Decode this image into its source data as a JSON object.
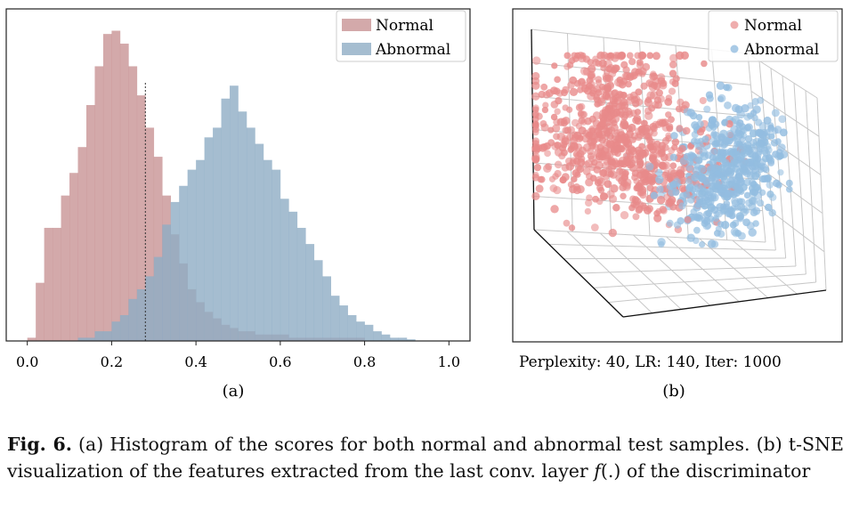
{
  "chart_data": [
    {
      "type": "histogram",
      "panel": "(a)",
      "xlim": [
        -0.05,
        1.05
      ],
      "xticks": [
        "0.0",
        "0.2",
        "0.4",
        "0.6",
        "0.8",
        "1.0"
      ],
      "xtick_values": [
        0.0,
        0.2,
        0.4,
        0.6,
        0.8,
        1.0
      ],
      "ylim": [
        0,
        1.0
      ],
      "yticks_visible": false,
      "bin_width": 0.02,
      "threshold": 0.28,
      "legend": [
        "Normal",
        "Abnormal"
      ],
      "legend_position": "top-right",
      "colors": {
        "normal": "#c48c8e",
        "abnormal": "#8facc4"
      },
      "series": [
        {
          "name": "Normal",
          "start": 0.0,
          "values": [
            0.01,
            0.18,
            0.35,
            0.35,
            0.45,
            0.52,
            0.6,
            0.73,
            0.85,
            0.95,
            0.96,
            0.92,
            0.85,
            0.76,
            0.66,
            0.57,
            0.45,
            0.33,
            0.24,
            0.16,
            0.12,
            0.09,
            0.07,
            0.05,
            0.04,
            0.03,
            0.03,
            0.02,
            0.02,
            0.02,
            0.02,
            0.01,
            0.01,
            0.01,
            0.01,
            0.01,
            0.01,
            0.01,
            0.01,
            0.01
          ]
        },
        {
          "name": "Abnormal",
          "start": 0.12,
          "values": [
            0.01,
            0.01,
            0.03,
            0.03,
            0.06,
            0.08,
            0.13,
            0.16,
            0.2,
            0.26,
            0.36,
            0.43,
            0.48,
            0.53,
            0.56,
            0.63,
            0.66,
            0.75,
            0.79,
            0.71,
            0.66,
            0.61,
            0.56,
            0.53,
            0.44,
            0.4,
            0.35,
            0.3,
            0.25,
            0.2,
            0.14,
            0.11,
            0.08,
            0.06,
            0.05,
            0.03,
            0.02,
            0.01,
            0.01,
            0.005
          ]
        }
      ]
    },
    {
      "type": "scatter3d",
      "panel": "(b)",
      "legend": [
        "Normal",
        "Abnormal"
      ],
      "legend_position": "top-right",
      "colors": {
        "normal": "#e88a8a",
        "abnormal": "#93bde0"
      },
      "subtitle": "Perplexity: 40, LR: 140, Iter: 1000",
      "clusters": [
        {
          "name": "Normal",
          "count": 780,
          "centers": [
            [
              0.32,
              0.25
            ],
            [
              0.22,
              0.42
            ],
            [
              0.42,
              0.48
            ]
          ],
          "spread": [
            0.1,
            0.08
          ]
        },
        {
          "name": "Abnormal",
          "count": 560,
          "centers": [
            [
              0.68,
              0.42
            ],
            [
              0.62,
              0.55
            ]
          ],
          "spread": [
            0.08,
            0.07
          ]
        }
      ]
    }
  ],
  "panel_a": {
    "label": "(a)",
    "legend_normal": "Normal",
    "legend_abnormal": "Abnormal"
  },
  "panel_b": {
    "label": "(b)",
    "legend_normal": "Normal",
    "legend_abnormal": "Abnormal",
    "subtitle": "Perplexity: 40, LR: 140, Iter: 1000"
  },
  "caption": {
    "fig_label": "Fig. 6.",
    "text_1": " (a) Histogram of the scores for both normal and abnormal test samples. (b) t-SNE visualization of the features extracted from the last conv. layer ",
    "func": "f",
    "text_2": "(.) of the discriminator"
  }
}
